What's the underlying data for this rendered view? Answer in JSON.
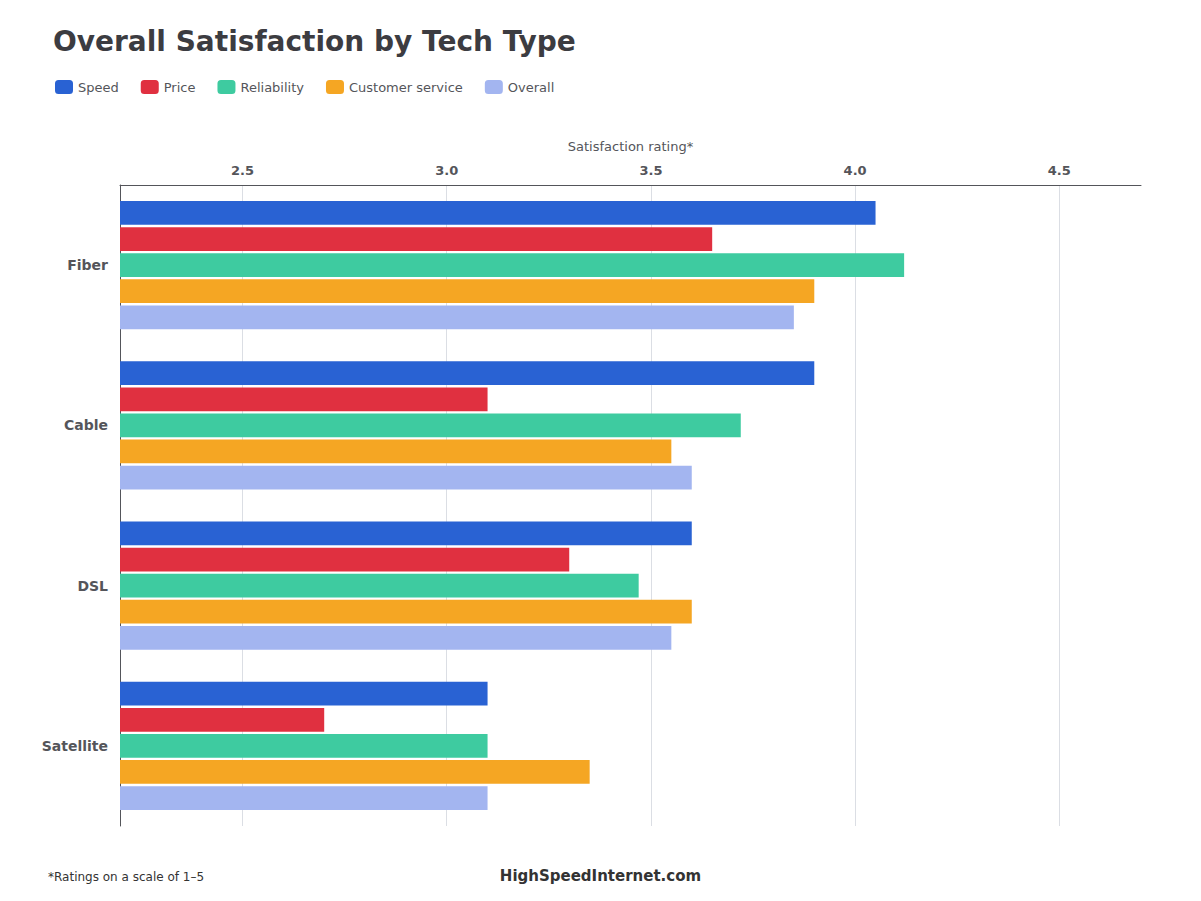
{
  "chart_data": {
    "type": "bar",
    "orientation": "horizontal",
    "title": "Overall Satisfaction by Tech Type",
    "xlabel": "Satisfaction rating*",
    "categories": [
      "Fiber",
      "Cable",
      "DSL",
      "Satellite"
    ],
    "series": [
      {
        "name": "Speed",
        "color": "#2962d3",
        "values": [
          4.05,
          3.9,
          3.6,
          3.1
        ]
      },
      {
        "name": "Price",
        "color": "#e03040",
        "values": [
          3.65,
          3.1,
          3.3,
          2.7
        ]
      },
      {
        "name": "Reliability",
        "color": "#3ecba0",
        "values": [
          4.12,
          3.72,
          3.47,
          3.1
        ]
      },
      {
        "name": "Customer service",
        "color": "#f5a623",
        "values": [
          3.9,
          3.55,
          3.6,
          3.35
        ]
      },
      {
        "name": "Overall",
        "color": "#a3b5f0",
        "values": [
          3.85,
          3.6,
          3.55,
          3.1
        ]
      }
    ],
    "xlim": [
      2.2,
      4.7
    ],
    "xticks": [
      2.5,
      {
        "value": 3,
        "label": "3.0"
      },
      3.5,
      {
        "value": 4,
        "label": "4.0"
      },
      4.5
    ],
    "grid": true,
    "legend": "upper left",
    "annotations": [
      "*Ratings on a scale of 1–5",
      "HighSpeedInternet.com"
    ]
  }
}
